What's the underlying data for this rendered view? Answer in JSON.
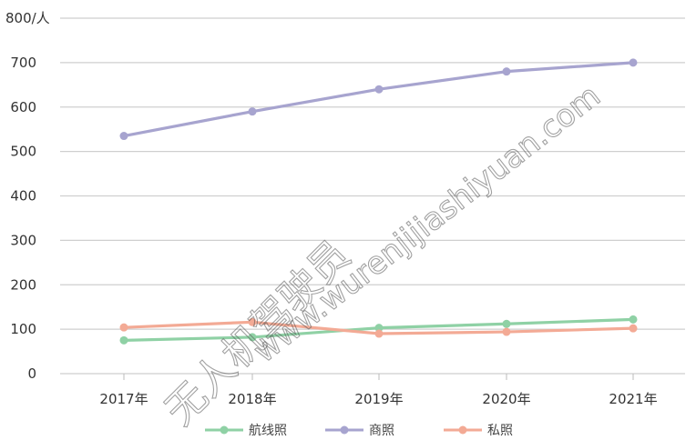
{
  "chart_data": {
    "type": "line",
    "title": "",
    "xlabel": "",
    "ylabel": "800/人",
    "categories": [
      "2017年",
      "2018年",
      "2019年",
      "2020年",
      "2021年"
    ],
    "ylim": [
      0,
      800
    ],
    "yticks": [
      0,
      100,
      200,
      300,
      400,
      500,
      600,
      700
    ],
    "grid": true,
    "legend_position": "bottom",
    "series": [
      {
        "name": "航线照",
        "color": "#8fd1a5",
        "values": [
          75,
          82,
          103,
          112,
          122
        ]
      },
      {
        "name": "商照",
        "color": "#a7a4cf",
        "values": [
          535,
          590,
          640,
          680,
          700
        ]
      },
      {
        "name": "私照",
        "color": "#f3aa95",
        "values": [
          104,
          116,
          90,
          94,
          102
        ]
      }
    ]
  },
  "watermark": {
    "text_cn": "无人机驾驶员",
    "text_url": "www.wurenjijiashiyuan.com"
  }
}
